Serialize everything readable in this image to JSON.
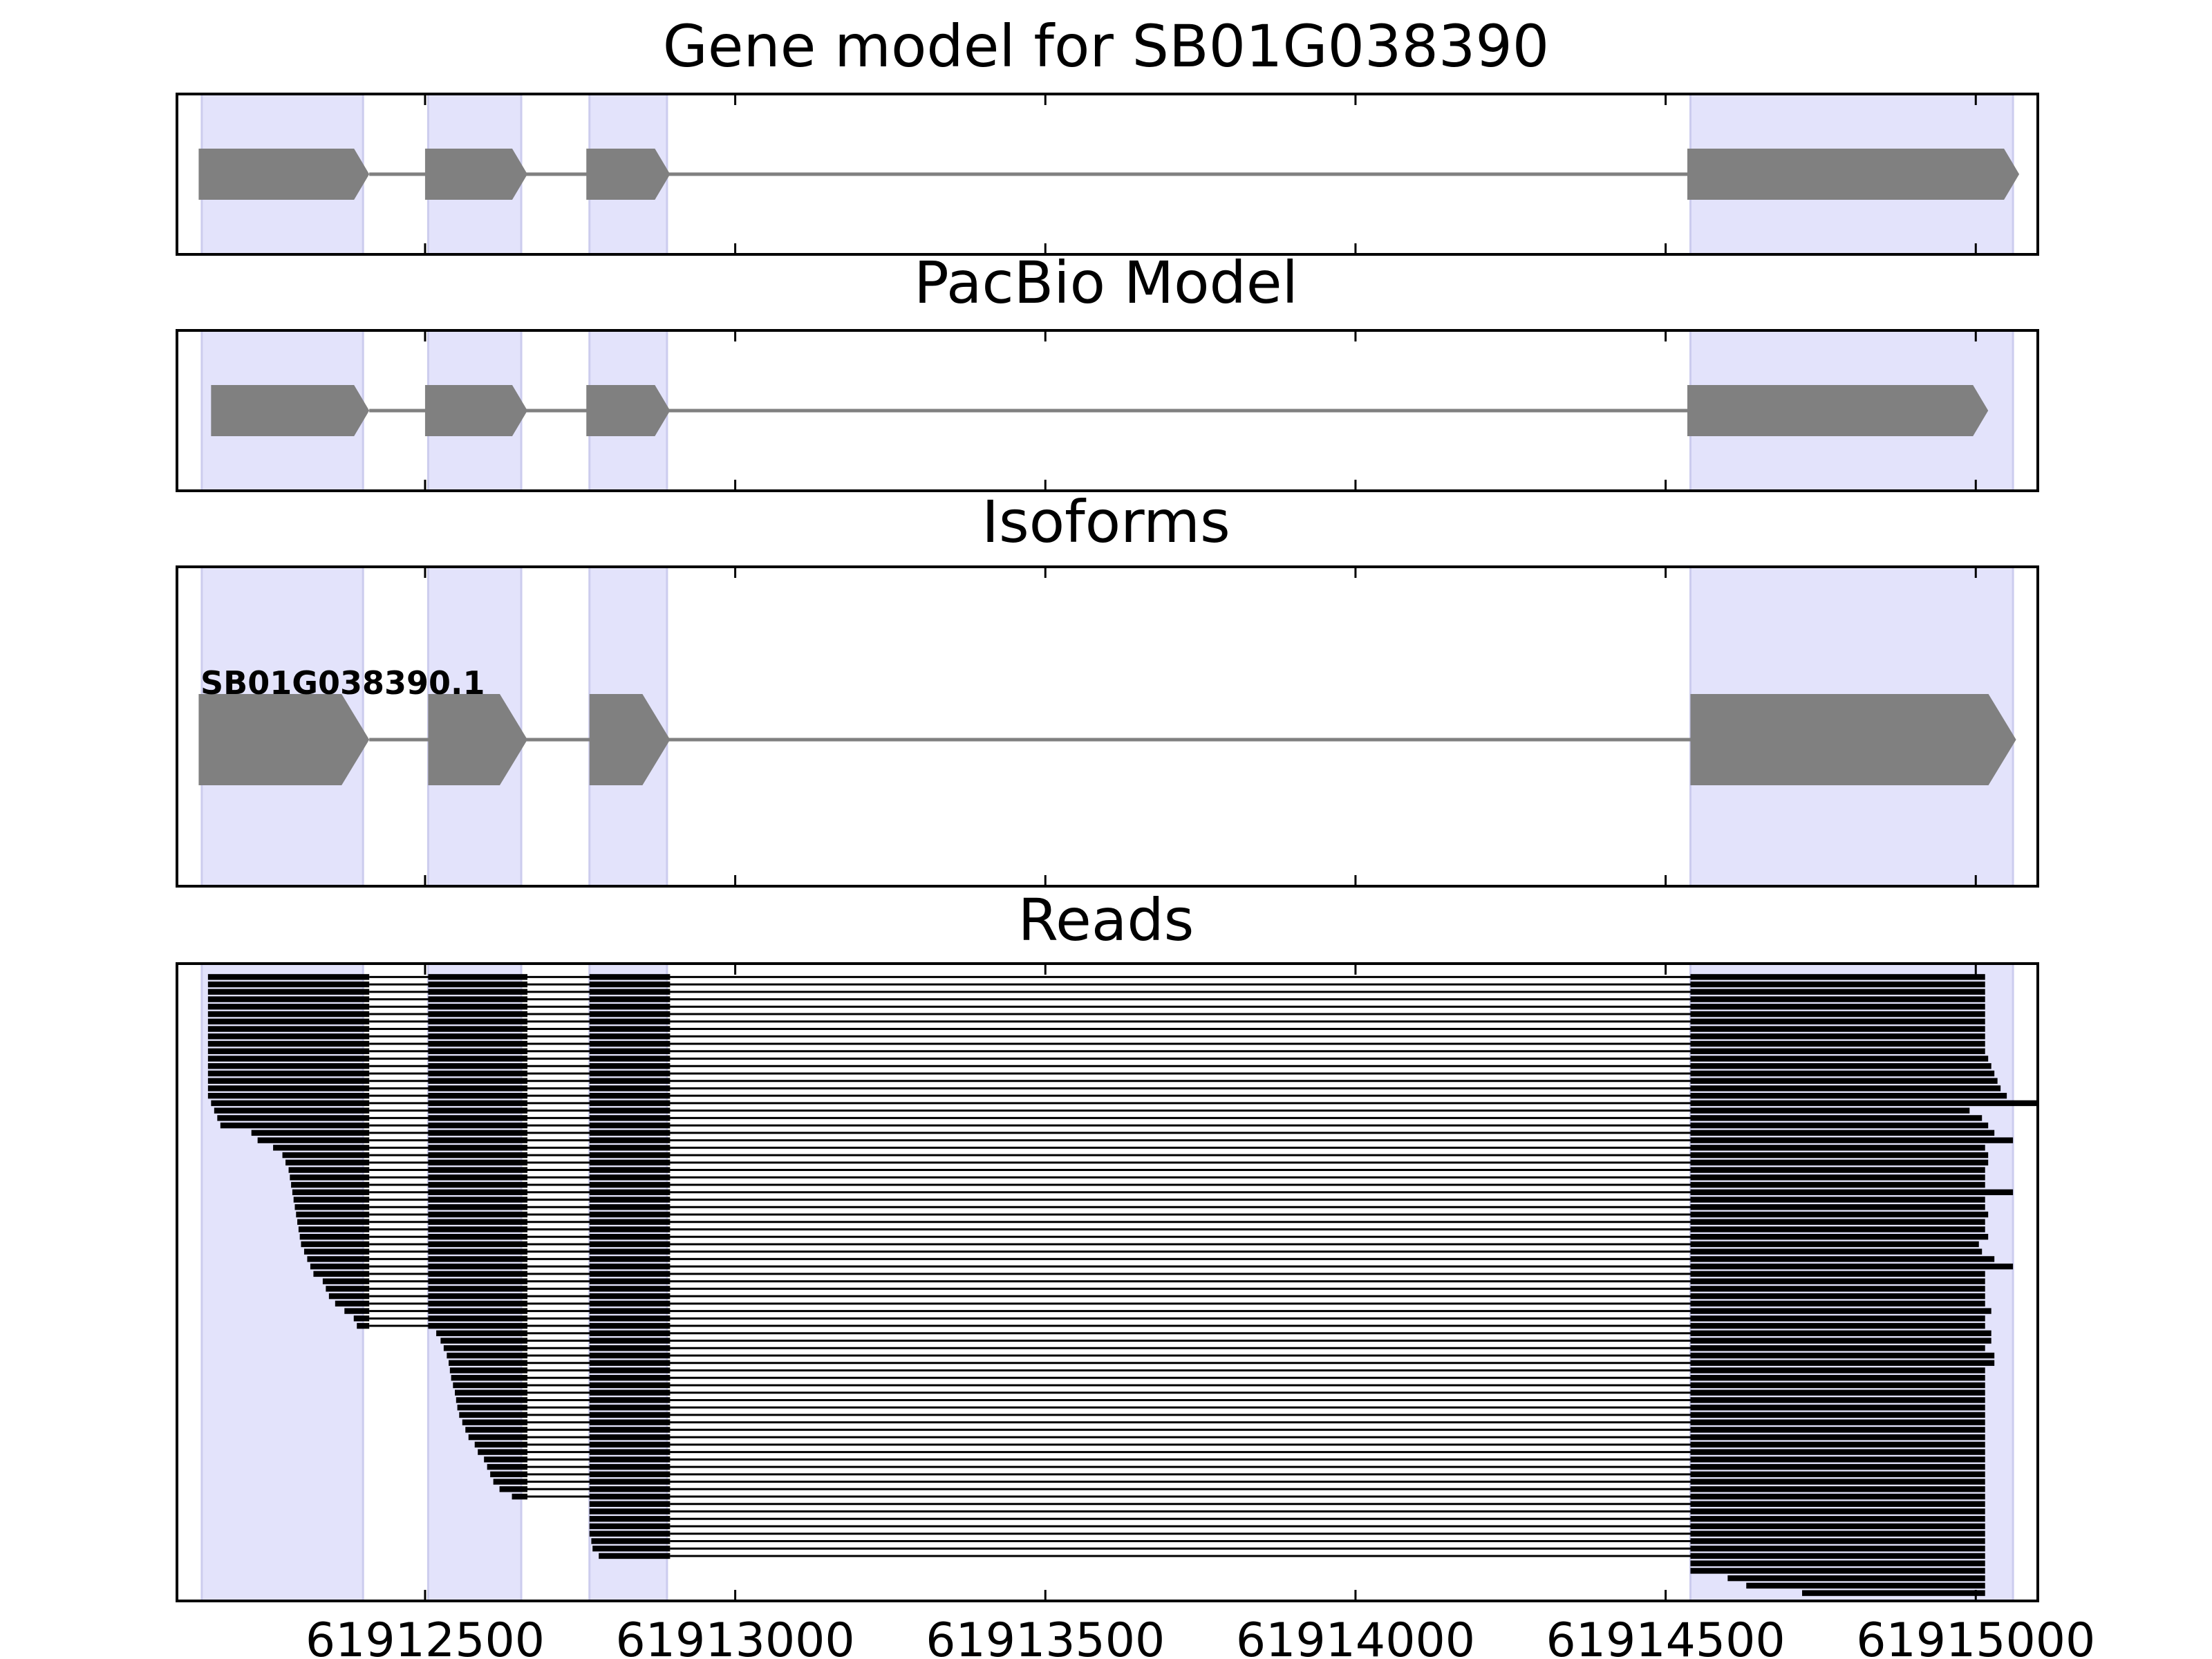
{
  "chart_data": {
    "type": "gene-model-track",
    "x_range": [
      61912100,
      61915100
    ],
    "x_ticks": [
      61912500,
      61913000,
      61913500,
      61914000,
      61914500,
      61915000
    ],
    "x_tick_labels": [
      "61912500",
      "61913000",
      "61913500",
      "61914000",
      "61914500",
      "61915000"
    ],
    "highlight_regions": [
      [
        61912140,
        61912400
      ],
      [
        61912505,
        61912655
      ],
      [
        61912765,
        61912890
      ],
      [
        61914540,
        61915060
      ]
    ],
    "colors": {
      "highlight": "#e3e3fb",
      "highlight_edge": "#ccccee",
      "exon": "#808080",
      "intron": "#808080",
      "read": "#000000"
    },
    "panels": [
      {
        "id": "gene-model",
        "title": "Gene model for SB01G038390",
        "exons": [
          [
            61912135,
            61912410
          ],
          [
            61912500,
            61912665
          ],
          [
            61912760,
            61912895
          ],
          [
            61914535,
            61915070
          ]
        ]
      },
      {
        "id": "pacbio-model",
        "title": "PacBio Model",
        "exons": [
          [
            61912155,
            61912410
          ],
          [
            61912500,
            61912665
          ],
          [
            61912760,
            61912895
          ],
          [
            61914535,
            61915020
          ]
        ]
      },
      {
        "id": "isoforms",
        "title": "Isoforms",
        "isoform_label": "SB01G038390.1",
        "exons": [
          [
            61912135,
            61912410
          ],
          [
            61912505,
            61912665
          ],
          [
            61912765,
            61912895
          ],
          [
            61914540,
            61915065
          ]
        ]
      },
      {
        "id": "reads",
        "title": "Reads",
        "read_count": 84,
        "read_starts": [
          61912150,
          61912150,
          61912150,
          61912150,
          61912150,
          61912150,
          61912150,
          61912150,
          61912150,
          61912150,
          61912150,
          61912150,
          61912150,
          61912150,
          61912150,
          61912150,
          61912150,
          61912155,
          61912160,
          61912165,
          61912170,
          61912220,
          61912230,
          61912255,
          61912270,
          61912275,
          61912280,
          61912282,
          61912284,
          61912286,
          61912288,
          61912290,
          61912292,
          61912294,
          61912296,
          61912298,
          61912300,
          61912305,
          61912310,
          61912315,
          61912320,
          61912335,
          61912340,
          61912345,
          61912355,
          61912370,
          61912385,
          61912390,
          61912518,
          61912525,
          61912530,
          61912535,
          61912538,
          61912540,
          61912542,
          61912545,
          61912548,
          61912550,
          61912552,
          61912555,
          61912560,
          61912565,
          61912570,
          61912580,
          61912585,
          61912595,
          61912600,
          61912605,
          61912610,
          61912620,
          61912640,
          61912765,
          61912765,
          61912765,
          61912765,
          61912765,
          61912768,
          61912770,
          61912780,
          61914540,
          61914540,
          61914600,
          61914630,
          61914720
        ],
        "read_ends": [
          61915015,
          61915015,
          61915015,
          61915015,
          61915015,
          61915015,
          61915015,
          61915015,
          61915015,
          61915015,
          61915015,
          61915020,
          61915025,
          61915030,
          61915035,
          61915040,
          61915050,
          61915100,
          61914990,
          61915010,
          61915020,
          61915030,
          61915060,
          61915015,
          61915020,
          61915020,
          61915015,
          61915015,
          61915015,
          61915060,
          61915015,
          61915015,
          61915020,
          61915015,
          61915015,
          61915020,
          61915005,
          61915010,
          61915030,
          61915060,
          61915015,
          61915015,
          61915015,
          61915015,
          61915015,
          61915025,
          61915015,
          61915015,
          61915025,
          61915025,
          61915015,
          61915030,
          61915030,
          61915015,
          61915015,
          61915015,
          61915015,
          61915015,
          61915015,
          61915015,
          61915015,
          61915015,
          61915015,
          61915015,
          61915015,
          61915015,
          61915015,
          61915015,
          61915015,
          61915015,
          61915015,
          61915015,
          61915015,
          61915015,
          61915015,
          61915015,
          61915015,
          61915015,
          61915015,
          61915015,
          61915015,
          61915015,
          61915015,
          61915015
        ]
      }
    ]
  }
}
